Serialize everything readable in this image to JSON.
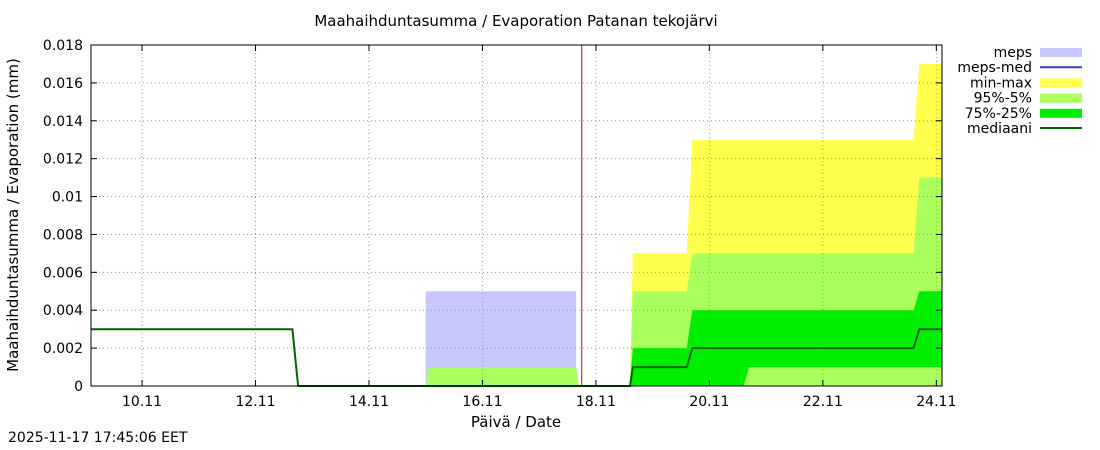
{
  "timestamp": "2025-11-17 17:45:06 EET",
  "chart_data": {
    "type": "area",
    "title": "Maahaihduntasumma / Evaporation   Patanan tekojärvi",
    "xlabel": "Päivä / Date",
    "ylabel": "Maahaihduntasumma / Evaporation (mm)",
    "xlim": [
      9.1,
      24.1
    ],
    "ylim": [
      0,
      0.018
    ],
    "grid": true,
    "legend_position": "right",
    "x_ticks": [
      {
        "x": 10,
        "label": "10.11"
      },
      {
        "x": 12,
        "label": "12.11"
      },
      {
        "x": 14,
        "label": "14.11"
      },
      {
        "x": 16,
        "label": "16.11"
      },
      {
        "x": 18,
        "label": "18.11"
      },
      {
        "x": 20,
        "label": "20.11"
      },
      {
        "x": 22,
        "label": "22.11"
      },
      {
        "x": 24,
        "label": "24.11"
      }
    ],
    "y_ticks": [
      {
        "y": 0,
        "label": "0"
      },
      {
        "y": 0.002,
        "label": "0.002"
      },
      {
        "y": 0.004,
        "label": "0.004"
      },
      {
        "y": 0.006,
        "label": "0.006"
      },
      {
        "y": 0.008,
        "label": "0.008"
      },
      {
        "y": 0.01,
        "label": "0.01"
      },
      {
        "y": 0.012,
        "label": "0.012"
      },
      {
        "y": 0.014,
        "label": "0.014"
      },
      {
        "y": 0.016,
        "label": "0.016"
      },
      {
        "y": 0.018,
        "label": "0.018"
      }
    ],
    "forecast_time_x": 17.75,
    "bands": [
      {
        "name": "meps",
        "color": "#c8c8ff",
        "lower": [
          [
            15.0,
            0
          ],
          [
            17.65,
            0
          ]
        ],
        "upper": [
          [
            15.0,
            0.005
          ],
          [
            17.65,
            0.005
          ]
        ]
      },
      {
        "name": "min-max",
        "color": "#ffff4d",
        "lower": [
          [
            18.6,
            0
          ],
          [
            24.1,
            0
          ]
        ],
        "upper": [
          [
            18.6,
            0
          ],
          [
            18.65,
            0.007
          ],
          [
            19.6,
            0.007
          ],
          [
            19.7,
            0.013
          ],
          [
            23.6,
            0.013
          ],
          [
            23.7,
            0.017
          ],
          [
            24.1,
            0.017
          ]
        ]
      },
      {
        "name": "95%-5%",
        "color": "#aaff5f",
        "lower": [
          [
            15.0,
            0
          ],
          [
            24.1,
            0
          ]
        ],
        "upper": [
          [
            15.0,
            0
          ],
          [
            15.05,
            0.001
          ],
          [
            17.65,
            0.001
          ],
          [
            17.7,
            0
          ],
          [
            18.6,
            0
          ],
          [
            18.65,
            0.005
          ],
          [
            19.6,
            0.005
          ],
          [
            19.7,
            0.007
          ],
          [
            23.6,
            0.007
          ],
          [
            23.7,
            0.011
          ],
          [
            24.1,
            0.011
          ]
        ]
      },
      {
        "name": "75%-25%",
        "color": "#00ee00",
        "lower": [
          [
            18.6,
            0
          ],
          [
            20.6,
            0
          ],
          [
            20.7,
            0.001
          ],
          [
            24.1,
            0.001
          ]
        ],
        "upper": [
          [
            18.6,
            0
          ],
          [
            18.65,
            0.002
          ],
          [
            19.6,
            0.002
          ],
          [
            19.7,
            0.004
          ],
          [
            23.6,
            0.004
          ],
          [
            23.7,
            0.005
          ],
          [
            24.1,
            0.005
          ]
        ]
      }
    ],
    "series": [
      {
        "name": "meps-med",
        "color": "#3c3cc8",
        "points": []
      },
      {
        "name": "mediaani",
        "color": "#006400",
        "points": [
          [
            9.1,
            0.003
          ],
          [
            12.65,
            0.003
          ],
          [
            12.75,
            0
          ],
          [
            18.6,
            0
          ],
          [
            18.65,
            0.001
          ],
          [
            19.6,
            0.001
          ],
          [
            19.7,
            0.002
          ],
          [
            23.6,
            0.002
          ],
          [
            23.7,
            0.003
          ],
          [
            24.1,
            0.003
          ]
        ]
      }
    ],
    "legend": [
      {
        "label": "meps",
        "color": "#c8c8ff",
        "kind": "box"
      },
      {
        "label": "meps-med",
        "color": "#3c3cc8",
        "kind": "line"
      },
      {
        "label": "min-max",
        "color": "#ffff4d",
        "kind": "box"
      },
      {
        "label": "95%-5%",
        "color": "#aaff5f",
        "kind": "box"
      },
      {
        "label": "75%-25%",
        "color": "#00ee00",
        "kind": "box"
      },
      {
        "label": "mediaani",
        "color": "#006400",
        "kind": "line"
      }
    ]
  }
}
